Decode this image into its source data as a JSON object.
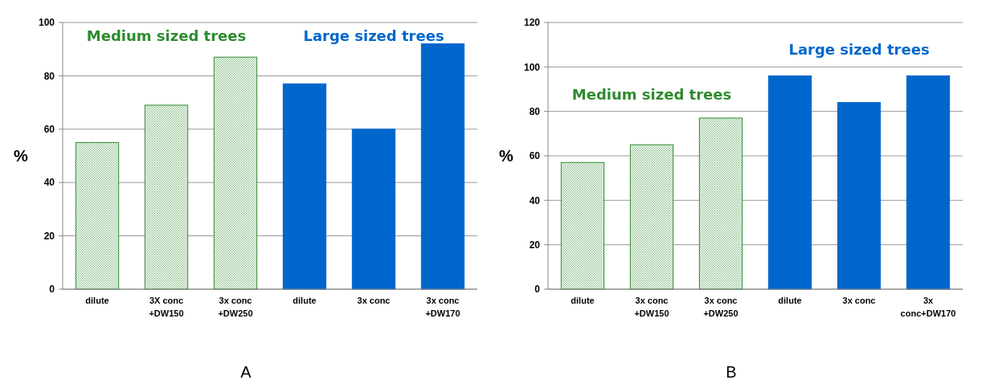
{
  "chart_data": [
    {
      "type": "bar",
      "title": "A",
      "ylabel": "%",
      "categories": [
        "dilute",
        "3X conc\n+DW150",
        "3x conc\n+DW250",
        "dilute",
        "3x conc",
        "3x conc\n+DW170"
      ],
      "values": [
        55,
        69,
        87,
        77,
        60,
        92
      ],
      "colors": [
        "#2e8b2e",
        "#2e8b2e",
        "#2e8b2e",
        "#0066cc",
        "#0066cc",
        "#0066cc"
      ],
      "ylim": [
        0,
        100
      ],
      "yticks": [
        0,
        20,
        40,
        60,
        80,
        100
      ],
      "grid": "y",
      "annotations": [
        "Medium sized trees",
        "Large sized trees"
      ]
    },
    {
      "type": "bar",
      "title": "B",
      "ylabel": "%",
      "categories": [
        "dilute",
        "3x conc\n+DW150",
        "3x conc\n+DW250",
        "dilute",
        "3x conc",
        "3x\nconc+DW170"
      ],
      "values": [
        57,
        65,
        77,
        96,
        84,
        96
      ],
      "colors": [
        "#2e8b2e",
        "#2e8b2e",
        "#2e8b2e",
        "#0066cc",
        "#0066cc",
        "#0066cc"
      ],
      "ylim": [
        0,
        120
      ],
      "yticks": [
        0,
        20,
        40,
        60,
        80,
        100,
        120
      ],
      "grid": "y",
      "annotations": [
        "Medium sized trees",
        "Large sized trees"
      ]
    }
  ]
}
